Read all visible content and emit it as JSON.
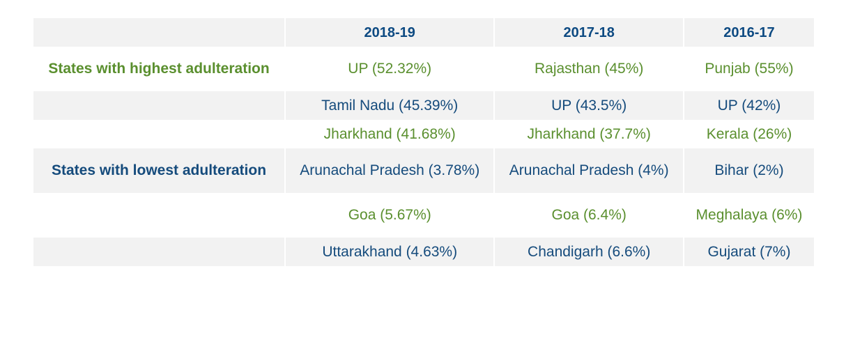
{
  "chart_data": {
    "type": "table",
    "columns": [
      "",
      "2018-19",
      "2017-18",
      "2016-17"
    ],
    "rows": [
      {
        "label": "States with highest adulteration",
        "cells": [
          "UP (52.32%)",
          "Rajasthan (45%)",
          "Punjab (55%)"
        ]
      },
      {
        "label": "",
        "cells": [
          "Tamil Nadu (45.39%)",
          "UP (43.5%)",
          "UP (42%)"
        ]
      },
      {
        "label": "",
        "cells": [
          "Jharkhand (41.68%)",
          "Jharkhand (37.7%)",
          "Kerala (26%)"
        ]
      },
      {
        "label": "States with lowest adulteration",
        "cells": [
          "Arunachal Pradesh (3.78%)",
          "Arunachal Pradesh (4%)",
          "Bihar (2%)"
        ]
      },
      {
        "label": "",
        "cells": [
          "Goa (5.67%)",
          "Goa (6.4%)",
          "Meghalaya (6%)"
        ]
      },
      {
        "label": "",
        "cells": [
          "Uttarakhand (4.63%)",
          "Chandigarh (6.6%)",
          "Gujarat (7%)"
        ]
      }
    ]
  },
  "colors": {
    "green": "#5a8f2e",
    "blue": "#154b7c",
    "header": "#0d4a82",
    "shade": "#f2f2f2"
  }
}
